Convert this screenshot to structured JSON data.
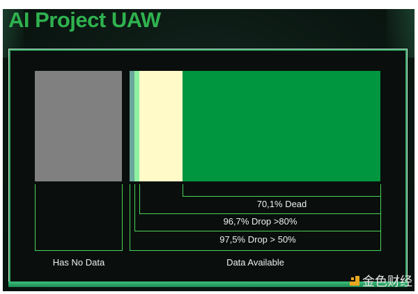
{
  "title": "AI Project UAW",
  "chart_data": {
    "type": "bar",
    "title": "AI Project UAW",
    "groups": [
      {
        "name": "Has No Data",
        "segments": [
          {
            "color": "#808080"
          }
        ]
      },
      {
        "name": "Data Available",
        "segments": [
          {
            "color": "#6aa89c"
          },
          {
            "color": "#8ef0a0"
          },
          {
            "color": "#fffac8"
          },
          {
            "color": "#00963f"
          }
        ]
      }
    ],
    "annotations": [
      "70,1% Dead",
      "96,7% Drop >80%",
      "97,5% Drop > 50%"
    ]
  },
  "labels": {
    "no_data": "Has No Data",
    "available": "Data Available"
  },
  "watermark": {
    "text": "金色财经"
  },
  "colors": {
    "accent": "#49d45a",
    "title": "#2fb24f"
  }
}
